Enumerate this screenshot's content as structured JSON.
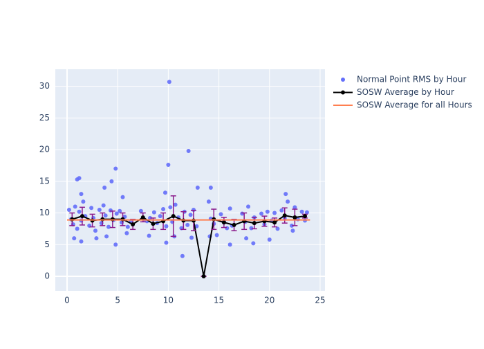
{
  "chart_data": {
    "type": "scatter",
    "xlim": [
      -1.16,
      25.48
    ],
    "ylim": [
      -2.3,
      32.7
    ],
    "xticks": [
      0,
      5,
      10,
      15,
      20,
      25
    ],
    "yticks": [
      0,
      5,
      10,
      15,
      20,
      25,
      30
    ],
    "grid": true,
    "legend": "right",
    "series": [
      {
        "name": "Normal Point RMS by Hour",
        "mode": "markers",
        "color": "#636efa",
        "x": [
          0.2,
          0.4,
          0.6,
          0.8,
          1.0,
          1.2,
          1.4,
          1.6,
          1.8,
          2.2,
          2.4,
          2.6,
          2.8,
          3.2,
          3.4,
          3.6,
          3.8,
          4.1,
          4.3,
          4.6,
          4.9,
          5.2,
          5.4,
          5.7,
          6.0,
          6.3,
          7.3,
          7.6,
          7.9,
          8.2,
          8.6,
          8.9,
          9.2,
          9.5,
          9.8,
          10.2,
          10.4,
          10.7,
          11.0,
          11.3,
          11.6,
          11.9,
          12.2,
          12.5,
          12.8,
          14.0,
          14.2,
          14.5,
          14.8,
          15.2,
          15.5,
          15.8,
          16.1,
          16.3,
          17.3,
          17.6,
          17.9,
          18.2,
          18.5,
          19.2,
          19.5,
          19.8,
          20.2,
          20.5,
          20.8,
          21.2,
          21.5,
          21.8,
          22.2,
          22.5,
          22.8,
          23.2,
          23.5,
          23.7,
          10.1,
          12.0,
          10.0,
          4.8,
          4.4,
          1.2,
          1.0,
          3.7,
          12.9,
          14.2,
          9.7,
          1.4,
          21.6,
          5.5,
          11.4,
          4.8,
          16.1,
          18.4,
          9.8,
          1.4,
          20.0,
          0.7,
          2.9,
          3.9,
          5.9,
          8.1,
          10.6,
          12.3,
          14.1,
          17.7,
          22.3
        ],
        "y": [
          10.5,
          9.0,
          8.2,
          11.0,
          7.5,
          10.2,
          8.8,
          11.8,
          9.5,
          8.0,
          10.8,
          9.2,
          7.2,
          10.5,
          8.4,
          11.2,
          9.6,
          7.8,
          10.4,
          8.9,
          9.9,
          10.3,
          8.5,
          9.4,
          7.8,
          8.6,
          10.3,
          9.0,
          8.7,
          9.2,
          10.1,
          8.4,
          9.5,
          10.6,
          7.9,
          10.9,
          8.6,
          11.3,
          9.3,
          7.6,
          10.2,
          8.1,
          9.7,
          10.5,
          7.9,
          11.8,
          9.1,
          8.3,
          6.5,
          9.8,
          8.7,
          7.6,
          10.7,
          8.0,
          9.9,
          8.6,
          11.0,
          7.6,
          9.3,
          9.9,
          8.2,
          10.2,
          8.8,
          10.0,
          7.5,
          10.4,
          9.2,
          11.8,
          8.0,
          10.9,
          9.0,
          10.2,
          8.8,
          10.1,
          30.7,
          19.8,
          17.6,
          17.0,
          15.0,
          15.5,
          15.3,
          14.0,
          14.0,
          14.0,
          13.2,
          13.0,
          13.0,
          12.5,
          3.2,
          5.0,
          5.0,
          5.2,
          5.3,
          5.5,
          5.8,
          6.0,
          6.0,
          6.3,
          6.8,
          6.4,
          6.3,
          6.1,
          6.3,
          6.0,
          7.2
        ]
      },
      {
        "name": "SOSW Average by Hour",
        "mode": "lines+markers",
        "color": "#000000",
        "error_color": "#8b1a8b",
        "x": [
          0.5,
          1.5,
          2.5,
          3.5,
          4.5,
          5.5,
          6.5,
          7.5,
          8.5,
          9.5,
          10.5,
          11.5,
          12.5,
          13.5,
          14.5,
          15.5,
          16.5,
          17.5,
          18.5,
          19.5,
          20.5,
          21.5,
          22.5,
          23.5
        ],
        "y": [
          9.0,
          9.5,
          8.8,
          9.0,
          9.0,
          9.0,
          8.2,
          9.3,
          8.3,
          8.7,
          9.5,
          8.8,
          8.8,
          0,
          9.0,
          8.5,
          8.1,
          8.7,
          8.4,
          8.7,
          8.5,
          9.6,
          9.3,
          9.5
        ],
        "error": [
          1.0,
          1.4,
          1.0,
          1.0,
          1.3,
          1.0,
          0.8,
          0.7,
          0.9,
          1.3,
          3.2,
          1.4,
          1.6,
          0,
          1.6,
          0.8,
          0.9,
          1.3,
          0.9,
          0.8,
          0.7,
          1.2,
          1.3,
          0.3
        ]
      },
      {
        "name": "SOSW Average for all Hours",
        "mode": "lines",
        "color": "#ff7f50",
        "x": [
          0,
          24
        ],
        "y": [
          8.9,
          8.9
        ]
      }
    ]
  }
}
